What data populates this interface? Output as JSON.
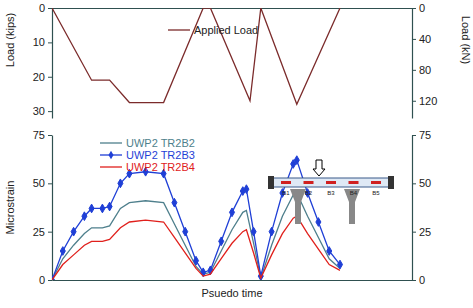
{
  "chart_data": [
    {
      "type": "line",
      "y_label": "Load (kips)",
      "y2_label": "Load (kN)",
      "x": [
        0,
        11,
        16,
        21.5,
        31,
        42,
        44,
        55,
        58,
        68,
        80
      ],
      "xlim": [
        0,
        100
      ],
      "ylim": [
        0,
        32
      ],
      "yticks": [
        0,
        10,
        20,
        30
      ],
      "y2lim": [
        0,
        142.3
      ],
      "y2ticks": [
        0,
        40,
        80,
        120
      ],
      "tick_labels": "y",
      "legend": "upper center",
      "series": [
        {
          "name": "Applied Load",
          "color": "#7b2b2b",
          "values": [
            0,
            21,
            21,
            27.5,
            27.5,
            0,
            0,
            27,
            0,
            28,
            0
          ]
        }
      ]
    },
    {
      "type": "line",
      "x_label": "Psuedo time",
      "y_label": "Microstrain",
      "x": [
        0,
        3,
        6,
        9,
        11,
        14,
        16,
        19,
        21.5,
        26,
        31,
        34,
        37,
        40,
        42,
        44,
        47,
        50,
        53,
        54,
        56,
        58,
        61,
        64,
        67,
        68,
        71,
        74,
        77,
        80
      ],
      "xlim": [
        0,
        100
      ],
      "ylim": [
        0,
        75
      ],
      "yticks": [
        0,
        25,
        50,
        75
      ],
      "y2lim": [
        0,
        75
      ],
      "y2ticks": [
        0,
        25,
        50,
        75
      ],
      "tick_labels": "y",
      "legend": "upper left",
      "annotations": [
        "B1",
        "B2",
        "B3",
        "B4",
        "B5"
      ],
      "series": [
        {
          "name": "UWP2 TR2B2",
          "color": "#4e7f8c",
          "values": [
            0,
            11,
            18,
            24,
            27,
            27,
            28,
            37,
            40,
            41,
            40,
            29,
            18,
            7,
            3,
            4,
            15,
            26,
            35,
            36,
            19,
            1,
            18,
            33,
            44,
            45,
            33,
            22,
            11,
            6
          ]
        },
        {
          "name": "UWP2 TR2B3",
          "color": "#1f3fd6",
          "marker": "diamond",
          "values": [
            0,
            15,
            25,
            33,
            37,
            37,
            38,
            50,
            55,
            56,
            55,
            40,
            25,
            10,
            4,
            5,
            20,
            35,
            46,
            47,
            25,
            2,
            25,
            45,
            60,
            62,
            45,
            30,
            15,
            8
          ]
        },
        {
          "name": "UWP2 TR2B4",
          "color": "#e0201c",
          "values": [
            0,
            8,
            13,
            18,
            20,
            20,
            21,
            27,
            30,
            31,
            30,
            22,
            14,
            6,
            2,
            3,
            11,
            19,
            25,
            26,
            14,
            1,
            13,
            24,
            32,
            33,
            24,
            16,
            8,
            5
          ]
        }
      ]
    }
  ]
}
